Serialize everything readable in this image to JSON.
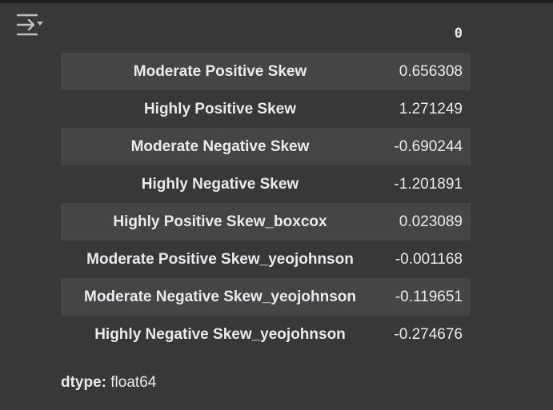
{
  "output": {
    "column_header": "0",
    "rows": [
      {
        "label": "Moderate Positive Skew",
        "value": "0.656308"
      },
      {
        "label": "Highly Positive Skew",
        "value": "1.271249"
      },
      {
        "label": "Moderate Negative Skew",
        "value": "-0.690244"
      },
      {
        "label": "Highly Negative Skew",
        "value": "-1.201891"
      },
      {
        "label": "Highly Positive Skew_boxcox",
        "value": "0.023089"
      },
      {
        "label": "Moderate Positive Skew_yeojohnson",
        "value": "-0.001168"
      },
      {
        "label": "Moderate Negative Skew_yeojohnson",
        "value": "-0.119651"
      },
      {
        "label": "Highly Negative Skew_yeojohnson",
        "value": "-0.274676"
      }
    ],
    "dtype_label": "dtype:",
    "dtype_value": "float64"
  },
  "icons": {
    "output_toggle": "output-view-toggle-icon"
  },
  "colors": {
    "background": "#383838",
    "stripe": "#454545",
    "text": "#e8eaed"
  }
}
